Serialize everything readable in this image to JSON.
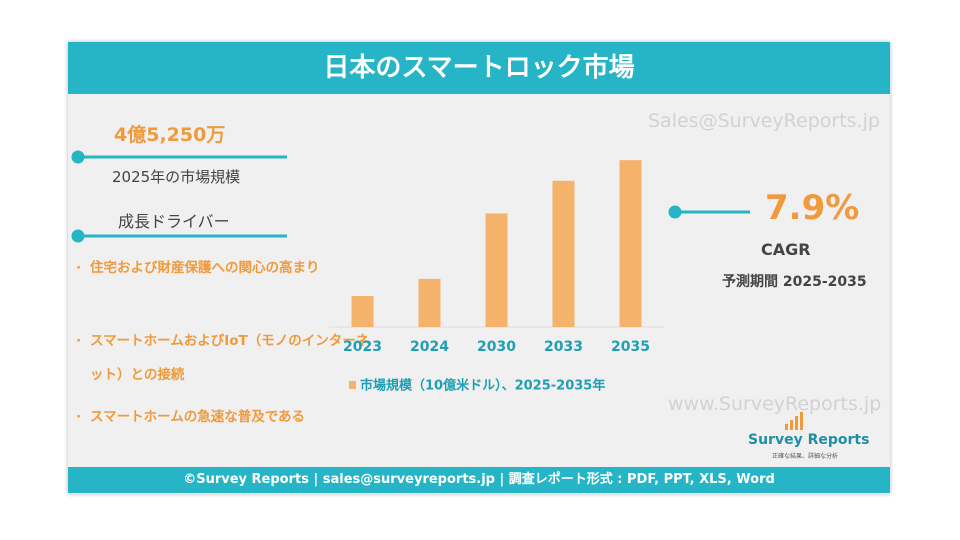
{
  "title": "日本のスマートロック市場",
  "watermarks": [
    "Sales@SurveyReports.jp",
    "www.SurveyReports.jp"
  ],
  "market_size": {
    "value": "4億5,250万",
    "label": "2025年の市場規模"
  },
  "drivers": {
    "heading": "成長ドライバー",
    "items": [
      "住宅および財産保護への関心の高まり",
      "スマートホームおよびIoT（モノのインターネット）との接続",
      "スマートホームの急速な普及である"
    ]
  },
  "cagr": {
    "value": "7.9%",
    "label": "CAGR",
    "period": "予測期間 2025-2035"
  },
  "logo": {
    "name": "Survey Reports",
    "tagline": "正確な結果、詳細な分析"
  },
  "footer": "©Survey Reports | sales@surveyreports.jp |  調査レポート形式 : PDF, PPT, XLS, Word",
  "chart_data": {
    "type": "bar",
    "categories": [
      "2023",
      "2024",
      "2030",
      "2033",
      "2035"
    ],
    "series": [
      {
        "name": "市場規模（10億米ドル）、2025-2035年",
        "color": "#f5b26b",
        "values": [
          0.18,
          0.28,
          0.66,
          0.85,
          0.97
        ]
      }
    ],
    "ylim": [
      0,
      1
    ]
  }
}
